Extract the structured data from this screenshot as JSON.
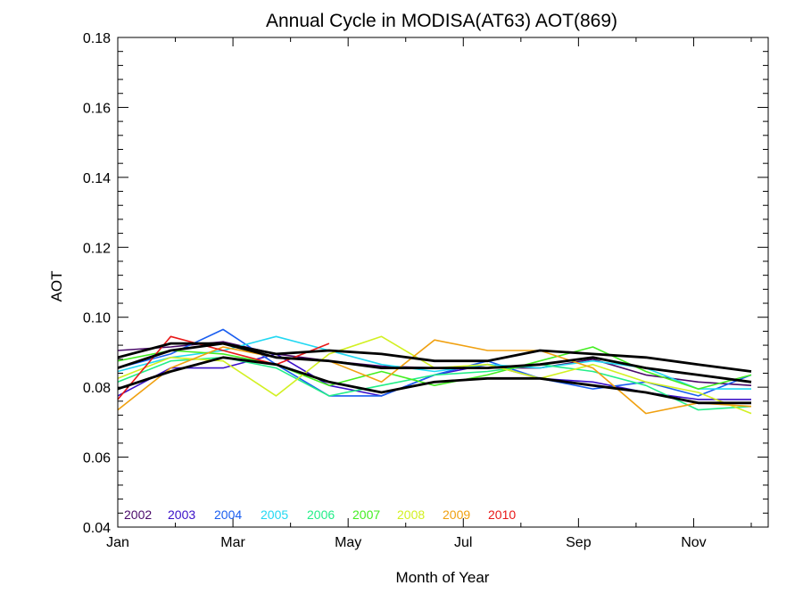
{
  "chart_data": {
    "type": "line",
    "title": "Annual Cycle in MODISA(AT63) AOT(869)",
    "xlabel": "Month of Year",
    "ylabel": "AOT",
    "xlim": [
      1,
      12
    ],
    "ylim": [
      0.04,
      0.18
    ],
    "xticks": [
      {
        "value": 1,
        "label": "Jan"
      },
      {
        "value": 3,
        "label": "Mar"
      },
      {
        "value": 5,
        "label": "May"
      },
      {
        "value": 7,
        "label": "Jul"
      },
      {
        "value": 9,
        "label": "Sep"
      },
      {
        "value": 11,
        "label": "Nov"
      }
    ],
    "yticks": [
      {
        "value": 0.04,
        "label": "0.04"
      },
      {
        "value": 0.06,
        "label": "0.06"
      },
      {
        "value": 0.08,
        "label": "0.08"
      },
      {
        "value": 0.1,
        "label": "0.10"
      },
      {
        "value": 0.12,
        "label": "0.12"
      },
      {
        "value": 0.14,
        "label": "0.14"
      },
      {
        "value": 0.16,
        "label": "0.16"
      },
      {
        "value": 0.18,
        "label": "0.18"
      }
    ],
    "grid": false,
    "legend_position": "bottom-left",
    "x": [
      1.0,
      1.92,
      2.83,
      3.75,
      4.67,
      5.58,
      6.5,
      7.42,
      8.33,
      9.25,
      10.17,
      11.08,
      12.0
    ],
    "series": [
      {
        "name": "2002",
        "color": "#4a0a6a",
        "values": [
          0.0905,
          0.0915,
          0.093,
          0.0895,
          0.0875,
          0.086,
          0.0855,
          0.0855,
          0.0855,
          0.088,
          0.0835,
          0.0815,
          0.0805
        ]
      },
      {
        "name": "2003",
        "color": "#3a10c8",
        "values": [
          0.0775,
          0.0855,
          0.0855,
          0.0895,
          0.0805,
          0.0775,
          0.0835,
          0.0865,
          0.0825,
          0.0815,
          0.0785,
          0.0765,
          0.0765
        ]
      },
      {
        "name": "2004",
        "color": "#1a5ef0",
        "values": [
          0.0855,
          0.0895,
          0.0965,
          0.0865,
          0.0775,
          0.0775,
          0.0835,
          0.0875,
          0.0825,
          0.0795,
          0.0815,
          0.0775,
          0.0835
        ]
      },
      {
        "name": "2005",
        "color": "#22d8f2",
        "values": [
          0.0845,
          0.0885,
          0.0905,
          0.0945,
          0.0905,
          0.0865,
          0.0845,
          0.0865,
          0.0855,
          0.0875,
          0.0855,
          0.0795,
          0.0795
        ]
      },
      {
        "name": "2006",
        "color": "#22ee88",
        "values": [
          0.0815,
          0.0875,
          0.0885,
          0.0855,
          0.0775,
          0.0805,
          0.0835,
          0.0845,
          0.0865,
          0.0845,
          0.0805,
          0.0735,
          0.0745
        ]
      },
      {
        "name": "2007",
        "color": "#44ee22",
        "values": [
          0.0875,
          0.0905,
          0.0895,
          0.0865,
          0.0805,
          0.0845,
          0.0805,
          0.0835,
          0.0875,
          0.0915,
          0.0845,
          0.0795,
          0.0835
        ]
      },
      {
        "name": "2008",
        "color": "#d2f022",
        "values": [
          0.0825,
          0.0885,
          0.0875,
          0.0775,
          0.0895,
          0.0945,
          0.0855,
          0.0865,
          0.0825,
          0.0865,
          0.0815,
          0.0785,
          0.0725
        ]
      },
      {
        "name": "2009",
        "color": "#f0a010",
        "values": [
          0.0735,
          0.0855,
          0.0915,
          0.0885,
          0.0875,
          0.0815,
          0.0935,
          0.0905,
          0.0905,
          0.0855,
          0.0725,
          0.0755,
          0.0745
        ]
      },
      {
        "name": "2010",
        "color": "#e81818",
        "values": [
          0.0765,
          0.0945,
          0.0905,
          0.0865,
          0.0925,
          null,
          null,
          null,
          null,
          null,
          null,
          null,
          null
        ]
      },
      {
        "name": "",
        "color": "#000000",
        "values": [
          0.0855,
          0.0905,
          0.0925,
          0.0885,
          0.0875,
          0.0855,
          0.0855,
          0.0855,
          0.0865,
          0.0885,
          0.0855,
          0.0835,
          0.0815
        ]
      },
      {
        "name": "",
        "color": "#000000",
        "values": [
          0.0795,
          0.0845,
          0.0885,
          0.0865,
          0.0815,
          0.0785,
          0.0815,
          0.0825,
          0.0825,
          0.0805,
          0.0785,
          0.0755,
          0.0755
        ]
      },
      {
        "name": "",
        "color": "#000000",
        "values": [
          0.0885,
          0.0925,
          0.0925,
          0.0895,
          0.0905,
          0.0895,
          0.0875,
          0.0875,
          0.0905,
          0.0895,
          0.0885,
          0.0865,
          0.0845
        ]
      }
    ]
  }
}
